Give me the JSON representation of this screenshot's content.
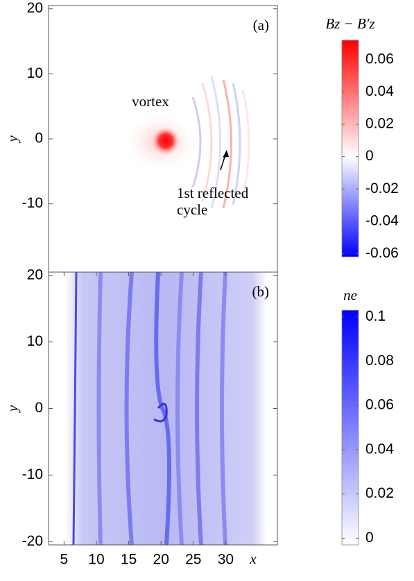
{
  "chart_data": [
    {
      "type": "heatmap",
      "panel_label": "(a)",
      "y_label": "y",
      "xlim": [
        2.6,
        38
      ],
      "ylim": [
        -20.5,
        20.5
      ],
      "yticks": [
        20,
        10,
        0,
        -10
      ],
      "annotations": [
        "vortex",
        "1st reflected",
        "cycle"
      ],
      "colorbar": {
        "label": "Bz − B′z",
        "clim": [
          -0.062,
          0.072
        ],
        "ticks": [
          0.06,
          0.04,
          0.02,
          0,
          -0.02,
          -0.04,
          -0.06
        ],
        "colors": [
          "#0000ff",
          "#ffffff",
          "#ff0000"
        ]
      }
    },
    {
      "type": "heatmap",
      "panel_label": "(b)",
      "x_label": "x",
      "y_label": "y",
      "xlim": [
        2.6,
        38
      ],
      "ylim": [
        -20.5,
        20.5
      ],
      "xticks": [
        5,
        10,
        15,
        20,
        25,
        30
      ],
      "yticks": [
        20,
        10,
        0,
        -10,
        -20
      ],
      "colorbar": {
        "label": "ne",
        "clim": [
          -0.003,
          0.103
        ],
        "ticks": [
          0.1,
          0.08,
          0.06,
          0.04,
          0.02,
          0
        ],
        "colors": [
          "#ffffff",
          "#0000ff"
        ]
      }
    }
  ]
}
